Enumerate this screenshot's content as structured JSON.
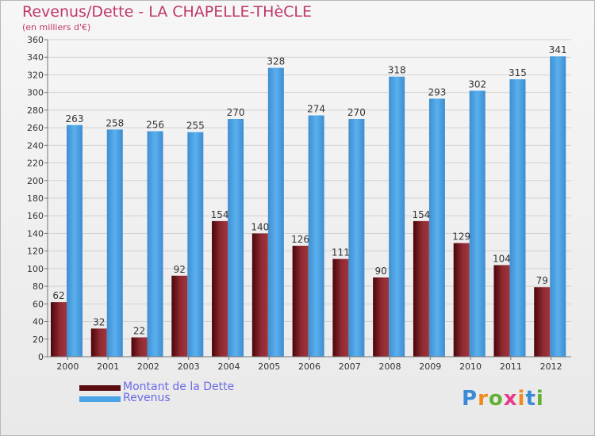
{
  "header": {
    "title": "Revenus/Dette - LA CHAPELLE-THèCLE",
    "subtitle": "(en milliers d'€)"
  },
  "chart_data": {
    "type": "bar",
    "title": "Revenus/Dette - LA CHAPELLE-THèCLE",
    "ylabel": "(en milliers d'€)",
    "categories": [
      "2000",
      "2001",
      "2002",
      "2003",
      "2004",
      "2005",
      "2006",
      "2007",
      "2008",
      "2009",
      "2010",
      "2011",
      "2012"
    ],
    "series": [
      {
        "name": "Montant de la Dette",
        "color": "#7a1c24",
        "values": [
          62,
          32,
          22,
          92,
          154,
          140,
          126,
          111,
          90,
          154,
          129,
          104,
          79
        ]
      },
      {
        "name": "Revenus",
        "color": "#4aa3e6",
        "values": [
          263,
          258,
          256,
          255,
          270,
          328,
          274,
          270,
          318,
          293,
          302,
          315,
          341
        ]
      }
    ],
    "ylim": [
      0,
      360
    ],
    "yticks": [
      0,
      20,
      40,
      60,
      80,
      100,
      120,
      140,
      160,
      180,
      200,
      220,
      240,
      260,
      280,
      300,
      320,
      340,
      360
    ],
    "grid": true,
    "legend": "bottom-left"
  },
  "legend": {
    "items": [
      {
        "label": "Montant de la Dette",
        "color": "#5a0c10"
      },
      {
        "label": "Revenus",
        "color": "#4aa3e6"
      }
    ]
  },
  "logo": {
    "text": "Proxiti"
  }
}
